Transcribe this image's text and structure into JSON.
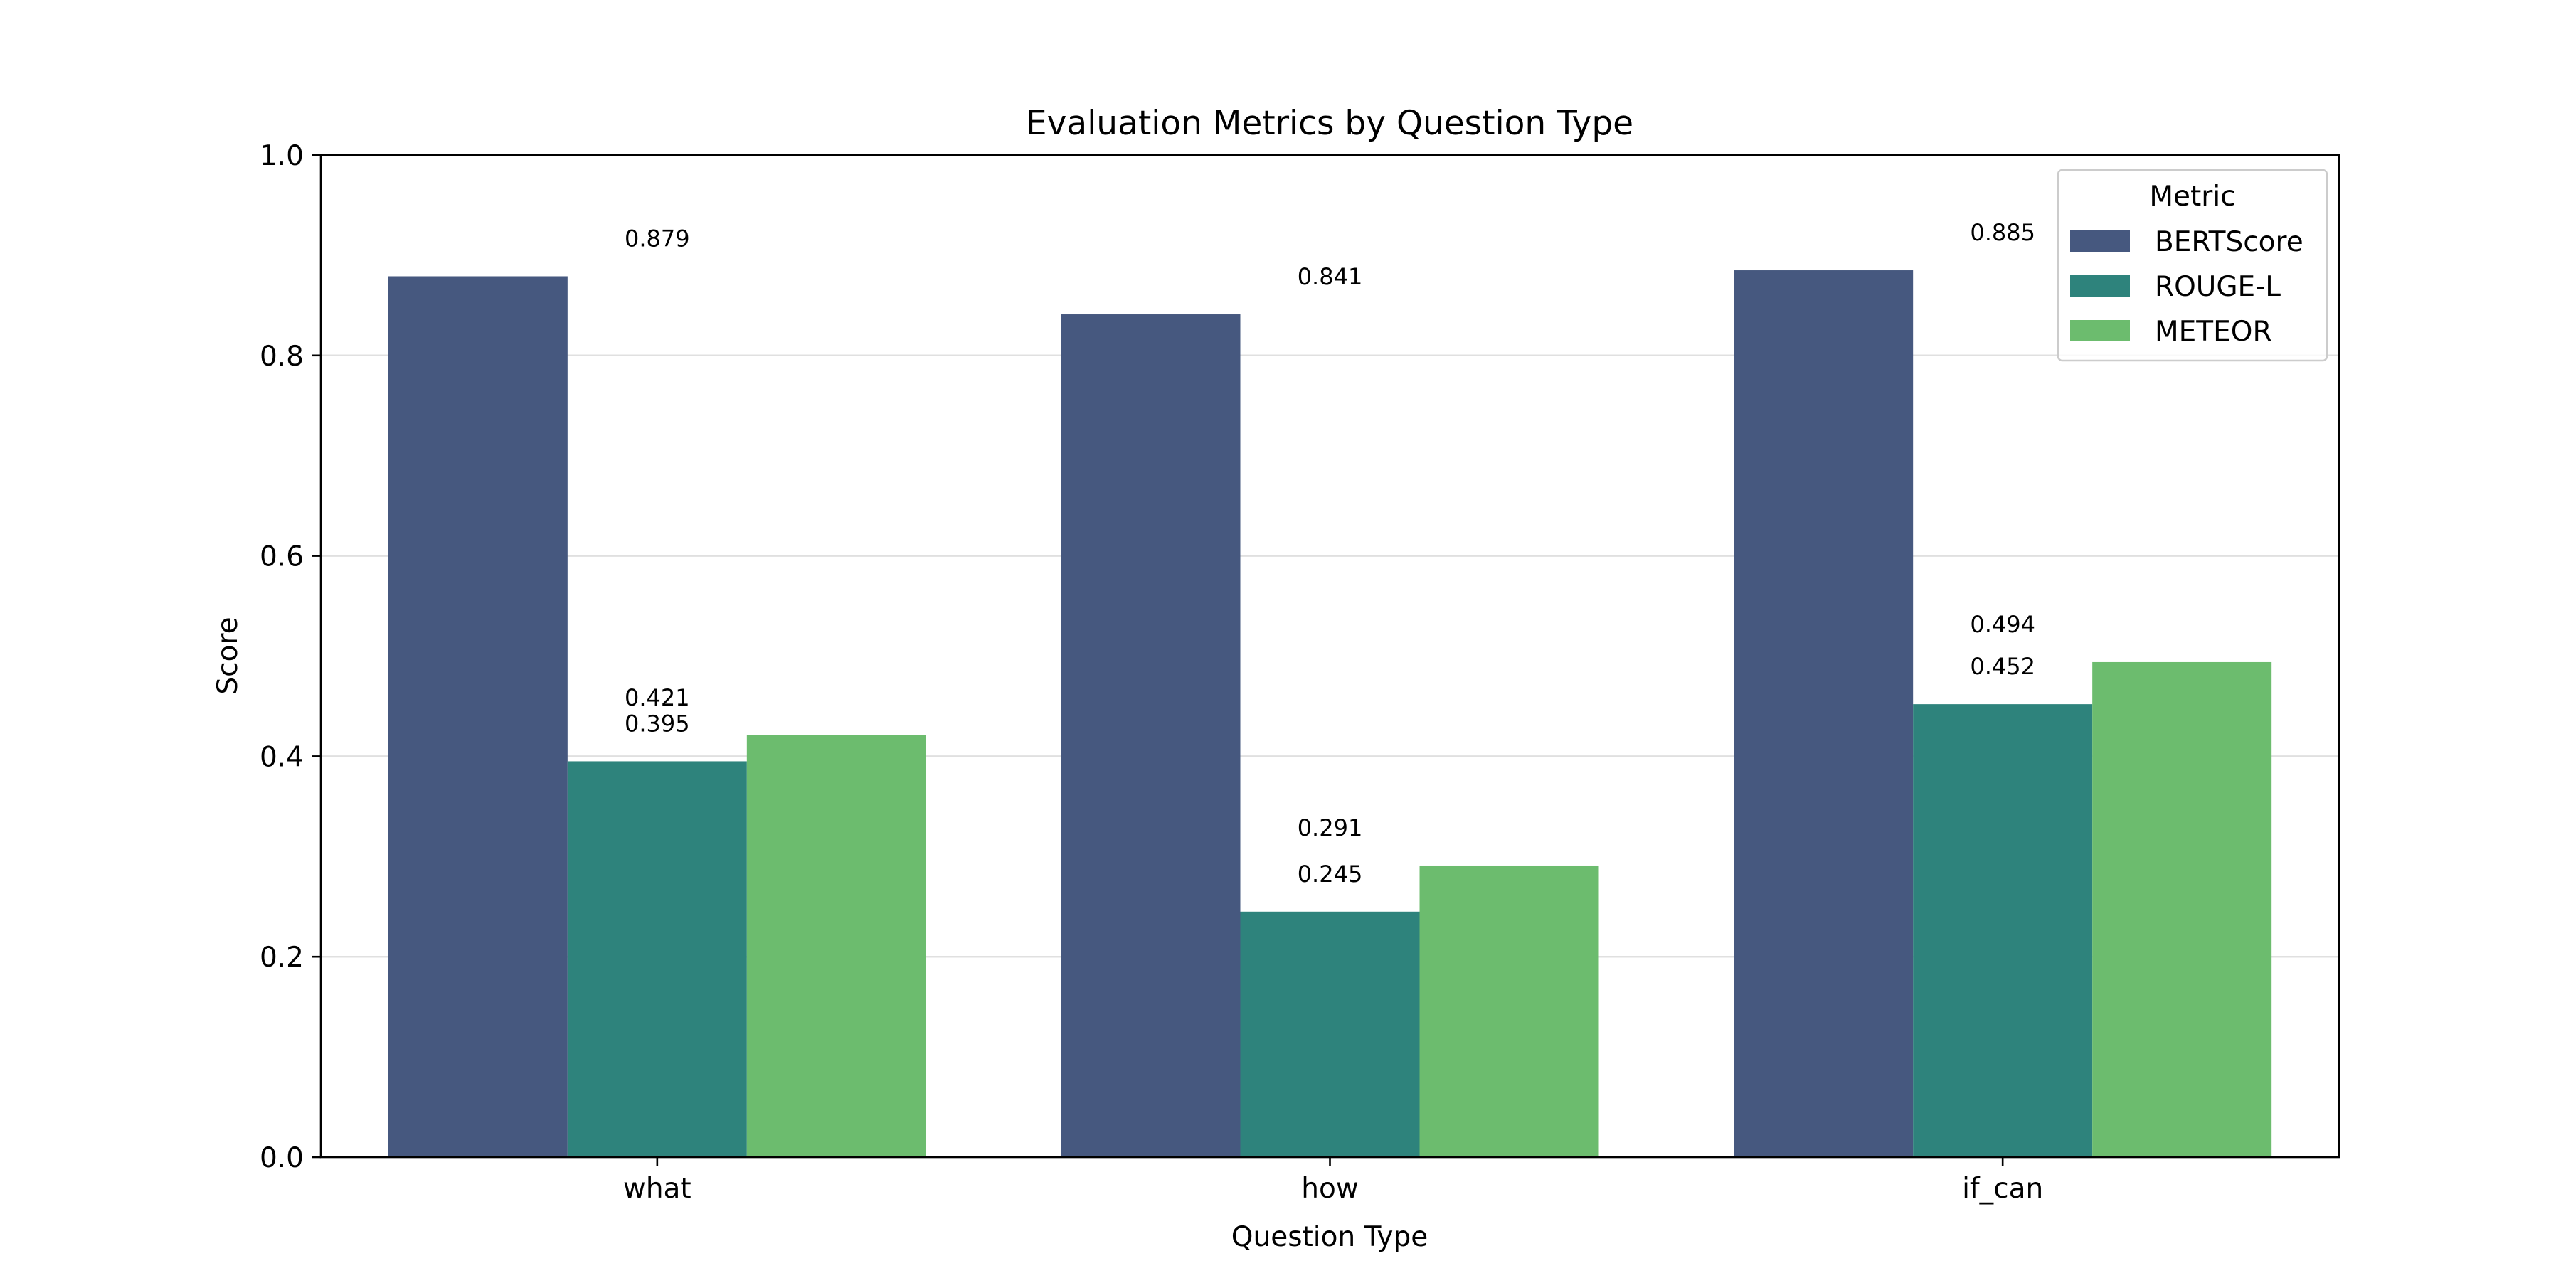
{
  "chart_data": {
    "type": "bar",
    "title": "Evaluation Metrics by Question Type",
    "xlabel": "Question Type",
    "ylabel": "Score",
    "categories": [
      "what",
      "how",
      "if_can"
    ],
    "ylim": [
      0,
      1.0
    ],
    "yticks": [
      "0.0",
      "0.2",
      "0.4",
      "0.6",
      "0.8",
      "1.0"
    ],
    "grid": "horizontal",
    "legend": {
      "title": "Metric",
      "placement": "top-right"
    },
    "series": [
      {
        "name": "BERTScore",
        "color": "#46587f",
        "values": [
          0.879,
          0.841,
          0.885
        ],
        "labels": [
          "0.879",
          "0.841",
          "0.885"
        ]
      },
      {
        "name": "ROUGE-L",
        "color": "#2e837c",
        "values": [
          0.395,
          0.245,
          0.452
        ],
        "labels": [
          "0.395",
          "0.245",
          "0.452"
        ]
      },
      {
        "name": "METEOR",
        "color": "#6cbc6e",
        "values": [
          0.421,
          0.291,
          0.494
        ],
        "labels": [
          "0.421",
          "0.291",
          "0.494"
        ]
      }
    ]
  }
}
